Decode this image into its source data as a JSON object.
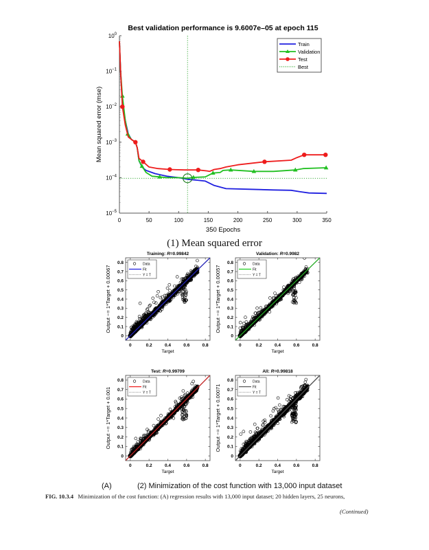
{
  "figure": {
    "subcaption_1": "(1) Mean squared error",
    "subcaption_2_label": "(A)",
    "subcaption_2": "(2) Minimization of the cost function with 13,000 input dataset",
    "fig_label": "FIG. 10.3.4",
    "fig_caption": "Minimization of the cost function: (A) regression results with 13,000 input dataset; 20 hidden layers, 25 neurons,",
    "continued": "(Continued)"
  },
  "chart_data": [
    {
      "type": "line",
      "title": "Best validation performance is 9.6007e–05 at epoch 115",
      "xlabel": "350 Epochs",
      "ylabel": "Mean squared error (mse)",
      "yscale": "log",
      "xlim": [
        0,
        350
      ],
      "ylim": [
        1e-05,
        1
      ],
      "xticks": [
        0,
        50,
        100,
        150,
        200,
        250,
        300,
        350
      ],
      "yticks": [
        1,
        0.1,
        0.01,
        0.001,
        0.0001,
        1e-05
      ],
      "ytick_labels": [
        "10^0",
        "10^-1",
        "10^-2",
        "10^-3",
        "10^-4",
        "10^-5"
      ],
      "legend": {
        "position": "top-right",
        "entries": [
          "Train",
          "Validation",
          "Test",
          "Best"
        ]
      },
      "colors": {
        "Train": "#1f1fe0",
        "Validation": "#22c022",
        "Test": "#ee1c1c",
        "Best": "#22a022"
      },
      "best": {
        "epoch": 115,
        "value": 9.6007e-05
      },
      "series": [
        {
          "name": "Train",
          "x": [
            0,
            2,
            5,
            10,
            15,
            20,
            27,
            30,
            33,
            38,
            45,
            60,
            80,
            100,
            115,
            130,
            145,
            160,
            180,
            220,
            260,
            290,
            305,
            320,
            350
          ],
          "y": [
            0.7,
            0.1,
            0.012,
            0.004,
            0.0017,
            0.0012,
            0.001,
            0.0007,
            0.0003,
            0.0002,
            0.00016,
            0.00013,
            0.00011,
            0.0001,
            9e-05,
            8.5e-05,
            8e-05,
            6e-05,
            4.9e-05,
            4.7e-05,
            4.5e-05,
            4.4e-05,
            4e-05,
            3.7e-05,
            3.6e-05
          ]
        },
        {
          "name": "Validation",
          "x": [
            0,
            2,
            5,
            10,
            14,
            20,
            27,
            30,
            33,
            38,
            45,
            55,
            68,
            80,
            100,
            115,
            125,
            145,
            158,
            170,
            175,
            188,
            227,
            260,
            297,
            310,
            349
          ],
          "y": [
            0.7,
            0.1,
            0.02,
            0.004,
            0.0017,
            0.0012,
            0.001,
            0.0007,
            0.0003,
            0.00021,
            0.00014,
            0.00011,
            0.000105,
            0.0001,
            0.0001,
            9.6e-05,
            0.000102,
            0.000105,
            0.000135,
            0.00014,
            0.00016,
            0.000165,
            0.00015,
            0.00015,
            0.000165,
            0.00018,
            0.00019
          ],
          "markers_x": [
            5,
            14,
            38,
            68,
            125,
            158,
            188,
            227,
            297,
            349
          ],
          "markers_y": [
            0.02,
            0.0017,
            0.00021,
            0.000105,
            0.000102,
            0.000135,
            0.000165,
            0.00015,
            0.000165,
            0.00019
          ]
        },
        {
          "name": "Test",
          "x": [
            0,
            2,
            5,
            10,
            15,
            20,
            27,
            30,
            33,
            40,
            50,
            65,
            85,
            110,
            133,
            148,
            152,
            160,
            170,
            180,
            200,
            245,
            290,
            300,
            312,
            348
          ],
          "y": [
            0.7,
            0.1,
            0.01,
            0.003,
            0.0014,
            0.0012,
            0.001,
            0.0007,
            0.00035,
            0.00028,
            0.0002,
            0.00018,
            0.00017,
            0.000165,
            0.000165,
            0.000155,
            0.00015,
            0.00017,
            0.00018,
            0.0002,
            0.00023,
            0.00028,
            0.00031,
            0.00037,
            0.00044,
            0.00044
          ],
          "markers_x": [
            5,
            27,
            40,
            85,
            133,
            245,
            312,
            348
          ],
          "markers_y": [
            0.01,
            0.001,
            0.00028,
            0.00017,
            0.000165,
            0.00028,
            0.00044,
            0.00044
          ]
        }
      ]
    },
    {
      "type": "scatter",
      "title_prefix": "Training: ",
      "title_r": "R=0.99842",
      "xlabel": "Target",
      "ylabel": "Output ~= 1*Target + 0.00067",
      "fit": {
        "slope": 1,
        "intercept": 0.00067,
        "color": "#1f1fe0"
      },
      "xlim": [
        -0.05,
        0.85
      ],
      "ylim": [
        -0.05,
        0.85
      ],
      "xticks": [
        0,
        0.2,
        0.4,
        0.6,
        0.8
      ],
      "yticks": [
        0,
        0.1,
        0.2,
        0.3,
        0.4,
        0.5,
        0.6,
        0.7,
        0.8
      ],
      "legend": {
        "position": "top-left",
        "entries": [
          "Data",
          "Fit",
          "Y = T"
        ]
      },
      "R": 0.99842
    },
    {
      "type": "scatter",
      "title_prefix": "Validation: ",
      "title_r": "R=0.9982",
      "xlabel": "Target",
      "ylabel": "Output ~= 1*Target + 0.00057",
      "fit": {
        "slope": 1,
        "intercept": 0.00057,
        "color": "#22d022"
      },
      "xlim": [
        -0.05,
        0.85
      ],
      "ylim": [
        -0.05,
        0.85
      ],
      "xticks": [
        0,
        0.2,
        0.4,
        0.6,
        0.8
      ],
      "yticks": [
        0,
        0.1,
        0.2,
        0.3,
        0.4,
        0.5,
        0.6,
        0.7,
        0.8
      ],
      "legend": {
        "position": "top-left",
        "entries": [
          "Data",
          "Fit",
          "Y = T"
        ]
      },
      "R": 0.9982
    },
    {
      "type": "scatter",
      "title_prefix": "Test: ",
      "title_r": "R=0.99709",
      "xlabel": "Target",
      "ylabel": "Output ~= 1*Target + 0.001",
      "fit": {
        "slope": 1,
        "intercept": 0.001,
        "color": "#ee1c1c"
      },
      "xlim": [
        -0.05,
        0.85
      ],
      "ylim": [
        -0.05,
        0.85
      ],
      "xticks": [
        0,
        0.2,
        0.4,
        0.6,
        0.8
      ],
      "yticks": [
        0,
        0.1,
        0.2,
        0.3,
        0.4,
        0.5,
        0.6,
        0.7,
        0.8
      ],
      "legend": {
        "position": "top-left",
        "entries": [
          "Data",
          "Fit",
          "Y = T"
        ]
      },
      "R": 0.99709
    },
    {
      "type": "scatter",
      "title_prefix": "All: ",
      "title_r": "R=0.99818",
      "xlabel": "Target",
      "ylabel": "Output ~= 1*Target + 0.00071",
      "fit": {
        "slope": 1,
        "intercept": 0.00071,
        "color": "#555555"
      },
      "xlim": [
        -0.05,
        0.85
      ],
      "ylim": [
        -0.05,
        0.85
      ],
      "xticks": [
        0,
        0.2,
        0.4,
        0.6,
        0.8
      ],
      "yticks": [
        0,
        0.1,
        0.2,
        0.3,
        0.4,
        0.5,
        0.6,
        0.7,
        0.8
      ],
      "legend": {
        "position": "top-left",
        "entries": [
          "Data",
          "Fit",
          "Y = T"
        ]
      },
      "R": 0.99818
    }
  ]
}
